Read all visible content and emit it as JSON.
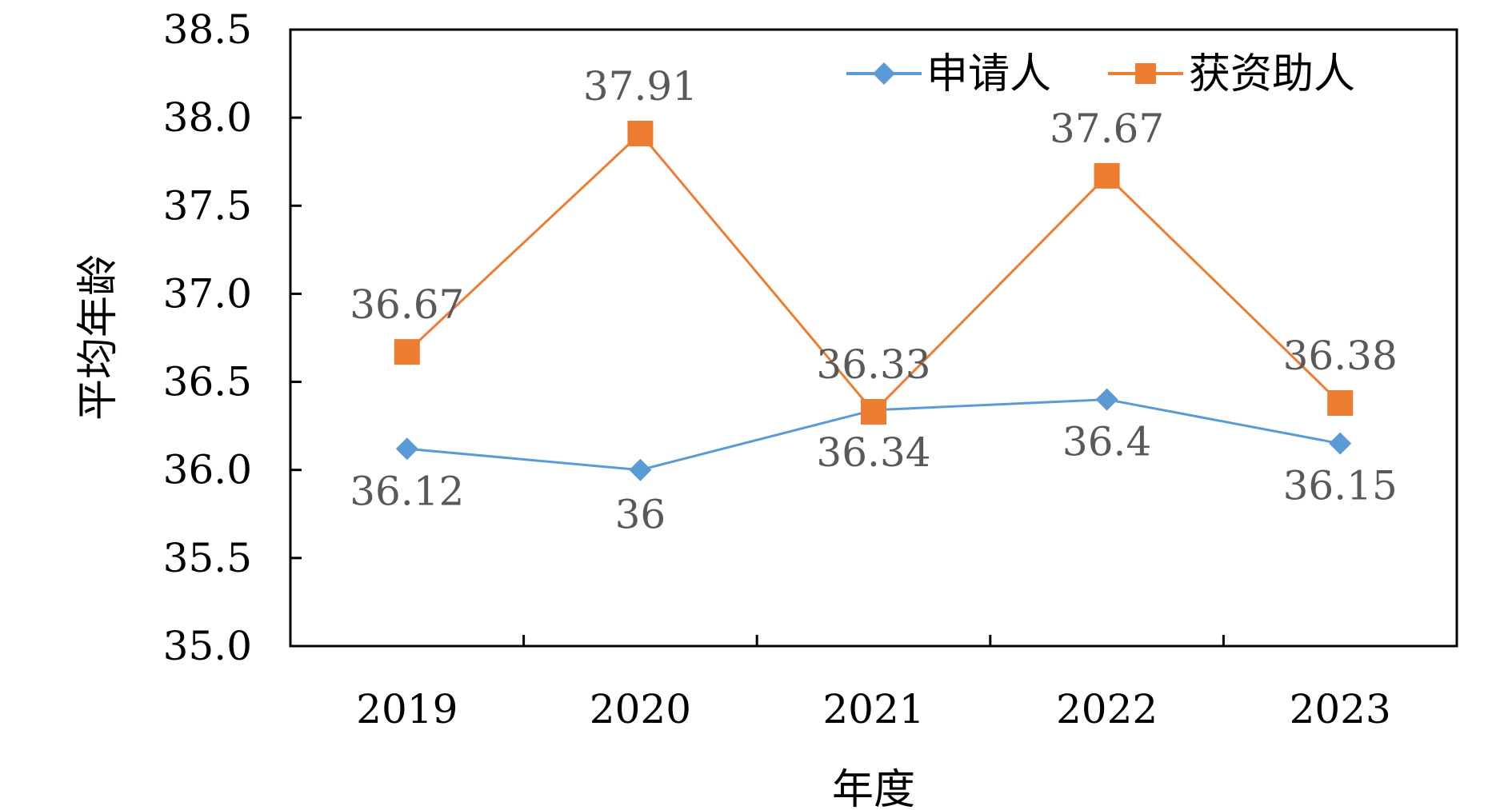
{
  "chart_data": {
    "type": "line",
    "title": "",
    "categories": [
      "2019",
      "2020",
      "2021",
      "2022",
      "2023"
    ],
    "series": [
      {
        "name": "申请人",
        "values": [
          36.12,
          36.0,
          36.34,
          36.4,
          36.15
        ],
        "labels": [
          "36.12",
          "36",
          "36.34",
          "36.4",
          "36.15"
        ],
        "color": "#5B9BD5",
        "marker": "diamond"
      },
      {
        "name": "获资助人",
        "values": [
          36.67,
          37.91,
          36.33,
          37.67,
          36.38
        ],
        "labels": [
          "36.67",
          "37.91",
          "36.33",
          "37.67",
          "36.38"
        ],
        "color": "#ED7D31",
        "marker": "square"
      }
    ],
    "xlabel": "年度",
    "ylabel": "平均年龄",
    "ylim": [
      35.0,
      38.5
    ],
    "yticks": [
      "35.0",
      "35.5",
      "36.0",
      "36.5",
      "37.0",
      "37.5",
      "38.0",
      "38.5"
    ],
    "grid": false,
    "legend_position": "top-right"
  }
}
